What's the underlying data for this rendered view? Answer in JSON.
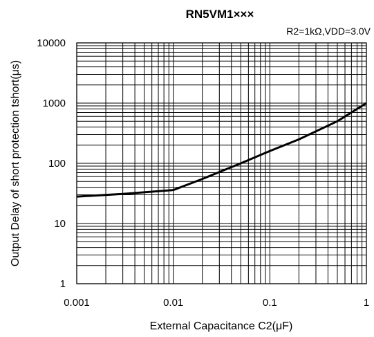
{
  "chart_data": {
    "type": "line",
    "title": "RN5VM1×××",
    "subtitle": "R2=1kΩ,VDD=3.0V",
    "xlabel": "External Capacitance C2(μF)",
    "ylabel": "Output Delay of short protection tshort(μs)",
    "x_scale": "log",
    "y_scale": "log",
    "xlim": [
      0.001,
      1
    ],
    "ylim": [
      1,
      10000
    ],
    "x_ticks": [
      0.001,
      0.01,
      0.1,
      1
    ],
    "x_tick_labels": [
      "0.001",
      "0.01",
      "0.1",
      "1"
    ],
    "y_ticks": [
      1,
      10,
      100,
      1000,
      10000
    ],
    "y_tick_labels": [
      "1",
      "10",
      "100",
      "1000",
      "10000"
    ],
    "grid": true,
    "series": [
      {
        "x": [
          0.001,
          0.003,
          0.01,
          0.02,
          0.05,
          0.1,
          0.2,
          0.5,
          1
        ],
        "y": [
          28,
          31,
          36,
          55,
          100,
          160,
          250,
          500,
          1000
        ]
      }
    ]
  }
}
